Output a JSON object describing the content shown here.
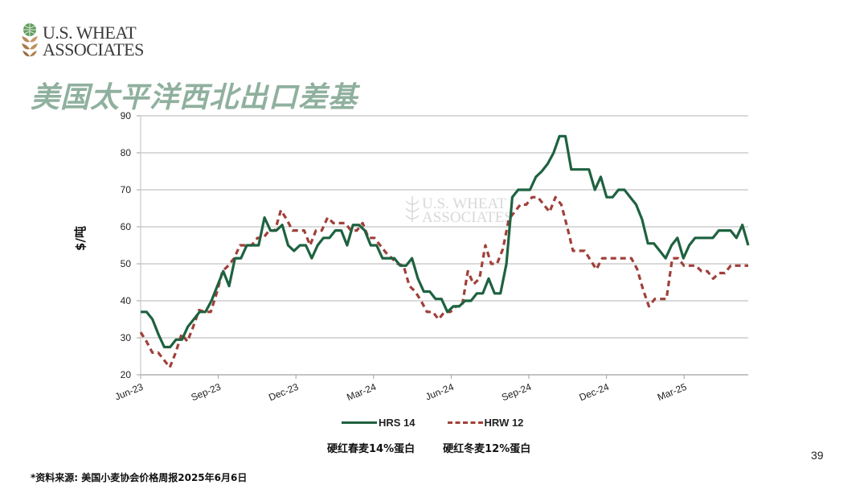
{
  "header": {
    "logo_line1": "U.S. WHEAT",
    "logo_line2": "ASSOCIATES",
    "title": "美国太平洋西北出口差基"
  },
  "watermark": {
    "line1": "U.S. WHEAT",
    "line2": "ASSOCIATES"
  },
  "legend": {
    "items": [
      {
        "label": "HRS 14",
        "sub": "硬红春麦14%蛋白",
        "color": "#1e6240",
        "style": "solid"
      },
      {
        "label": "HRW 12",
        "sub": "硬红冬麦12%蛋白",
        "color": "#a0403a",
        "style": "dashed"
      }
    ]
  },
  "footnote": "*资料来源: 美国小麦协会价格周报2025年6月6日",
  "page_number": "39",
  "chart_data": {
    "type": "line",
    "title": "美国太平洋西北出口差基",
    "xlabel": "",
    "ylabel": "$/吨",
    "ylim": [
      20,
      90
    ],
    "yticks": [
      20,
      30,
      40,
      50,
      60,
      70,
      80,
      90
    ],
    "xticks": [
      "Jun-23",
      "Sep-23",
      "Dec-23",
      "Mar-24",
      "Jun-24",
      "Sep-24",
      "Dec-24",
      "Mar-25"
    ],
    "x_range": [
      "2023-06-01",
      "2025-06-06"
    ],
    "x_unit": "weekly",
    "grid": true,
    "legend_position": "bottom",
    "series": [
      {
        "name": "HRS 14",
        "values": [
          37,
          37,
          35,
          31,
          27.5,
          27.5,
          29.5,
          29.5,
          33,
          35,
          37,
          37,
          40,
          44,
          48,
          44,
          51.5,
          51.5,
          55,
          55,
          55,
          62.5,
          59,
          59,
          60.5,
          55,
          53.5,
          55,
          55,
          51.5,
          55,
          57,
          57,
          59,
          59,
          55,
          60.5,
          60.5,
          59,
          55,
          55,
          51.5,
          51.5,
          51.5,
          49.5,
          49.5,
          51.5,
          46,
          42.5,
          42.5,
          40.5,
          40.5,
          37,
          38.5,
          38.5,
          40,
          40,
          42,
          42,
          46,
          42,
          42,
          50,
          68,
          70,
          70,
          70,
          73.5,
          75,
          77,
          80,
          84.5,
          84.5,
          75.5,
          75.5,
          75.5,
          75.5,
          70,
          73.5,
          68,
          68,
          70,
          70,
          68,
          66,
          62,
          55.5,
          55.5,
          53.5,
          51.5,
          55,
          57,
          51.5,
          55,
          57,
          57,
          57,
          57,
          59,
          59,
          59,
          57,
          60.5,
          55
        ]
      },
      {
        "name": "HRW 12",
        "values": [
          31.5,
          29,
          26,
          26,
          24,
          22,
          26,
          31,
          29,
          33,
          37.5,
          37,
          37,
          42,
          48,
          49.5,
          51.5,
          55,
          55,
          55,
          57,
          57,
          59,
          59,
          64.5,
          62,
          59,
          59,
          59,
          55,
          59,
          59,
          62.5,
          61,
          61,
          61,
          59,
          59,
          61,
          57,
          57,
          55,
          53,
          51.5,
          50,
          49.5,
          44,
          42.5,
          40,
          37,
          37,
          35,
          37,
          37,
          38.5,
          38.5,
          48,
          44.5,
          46,
          55,
          50,
          50,
          54,
          62,
          64,
          66,
          66,
          68,
          68,
          66,
          64,
          68,
          66,
          60,
          53.5,
          53.5,
          53.5,
          51,
          48.5,
          51.5,
          51.5,
          51.5,
          51.5,
          51.5,
          51.5,
          48.5,
          43,
          38.5,
          40.5,
          40.5,
          40.5,
          51.5,
          51.5,
          49.5,
          49.5,
          49.5,
          48,
          48,
          46,
          47.5,
          47.5,
          49.5,
          49.5,
          49.5,
          49.5
        ]
      }
    ]
  }
}
